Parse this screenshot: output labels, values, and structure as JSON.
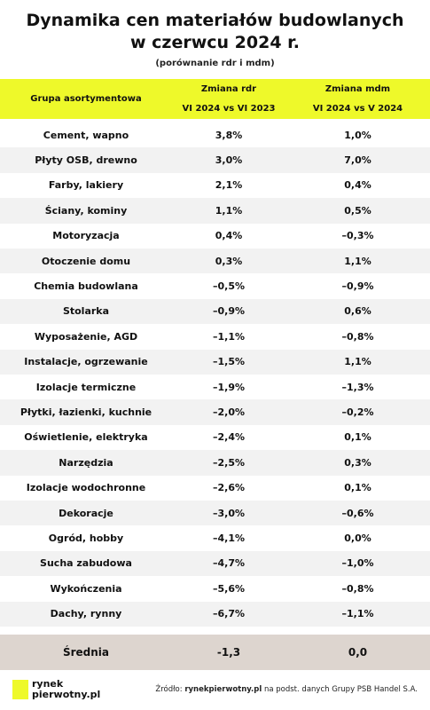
{
  "header": {
    "title_lines": [
      "Dynamika cen materiałów budowlanych",
      "w czerwcu 2024 r."
    ],
    "subtitle": "(porównanie  rdr i mdm)"
  },
  "table": {
    "columns": [
      [
        "Grupa asortymentowa"
      ],
      [
        "Zmiana rdr",
        "VI 2024 vs VI 2023"
      ],
      [
        "Zmiana mdm",
        "VI 2024  vs V 2024"
      ]
    ],
    "rows": [
      [
        "Cement, wapno",
        "3,8%",
        "1,0%"
      ],
      [
        "Płyty OSB, drewno",
        "3,0%",
        "7,0%"
      ],
      [
        "Farby, lakiery",
        "2,1%",
        "0,4%"
      ],
      [
        "Ściany, kominy",
        "1,1%",
        "0,5%"
      ],
      [
        "Motoryzacja",
        "0,4%",
        "–0,3%"
      ],
      [
        "Otoczenie domu",
        "0,3%",
        "1,1%"
      ],
      [
        "Chemia budowlana",
        "–0,5%",
        "–0,9%"
      ],
      [
        "Stolarka",
        "–0,9%",
        "0,6%"
      ],
      [
        "Wyposażenie, AGD",
        "–1,1%",
        "–0,8%"
      ],
      [
        "Instalacje, ogrzewanie",
        "–1,5%",
        "1,1%"
      ],
      [
        "Izolacje termiczne",
        "–1,9%",
        "–1,3%"
      ],
      [
        "Płytki, łazienki, kuchnie",
        "–2,0%",
        "–0,2%"
      ],
      [
        "Oświetlenie, elektryka",
        "–2,4%",
        "0,1%"
      ],
      [
        "Narzędzia",
        "–2,5%",
        "0,3%"
      ],
      [
        "Izolacje wodochronne",
        "–2,6%",
        "0,1%"
      ],
      [
        "Dekoracje",
        "–3,0%",
        "–0,6%"
      ],
      [
        "Ogród, hobby",
        "–4,1%",
        "0,0%"
      ],
      [
        "Sucha zabudowa",
        "–4,7%",
        "–1,0%"
      ],
      [
        "Wykończenia",
        "–5,6%",
        "–0,8%"
      ],
      [
        "Dachy, rynny",
        "–6,7%",
        "–1,1%"
      ]
    ],
    "summary": [
      "Średnia",
      "-1,3",
      "0,0"
    ]
  },
  "footer": {
    "logo": [
      "rynek",
      "pierwotny.pl"
    ],
    "source": [
      "Źródło: ",
      "rynekpierwotny.pl",
      " na podst. danych Grupy PSB Handel S.A."
    ]
  }
}
